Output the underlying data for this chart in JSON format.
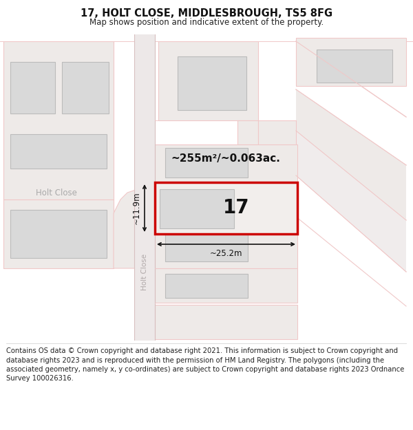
{
  "title": "17, HOLT CLOSE, MIDDLESBROUGH, TS5 8FG",
  "subtitle": "Map shows position and indicative extent of the property.",
  "footer": "Contains OS data © Crown copyright and database right 2021. This information is subject to Crown copyright and database rights 2023 and is reproduced with the permission of HM Land Registry. The polygons (including the associated geometry, namely x, y co-ordinates) are subject to Crown copyright and database rights 2023 Ordnance Survey 100026316.",
  "area_label": "~255m²/~0.063ac.",
  "width_label": "~25.2m",
  "height_label": "~11.9m",
  "number_label": "17",
  "bg_color": "#ffffff",
  "map_bg": "#f7f4f4",
  "road_band_color": "#ede8e8",
  "plot_outline_color": "#cc0000",
  "building_face": "#d9d9d9",
  "building_edge": "#bbbbbb",
  "parcel_face": "#eeeae8",
  "parcel_edge": "#e8b8b8",
  "street_line": "#f0c8c8",
  "dim_color": "#111111",
  "label_color": "#888888",
  "title_fontsize": 10.5,
  "subtitle_fontsize": 8.5,
  "footer_fontsize": 7.2,
  "area_fontsize": 11,
  "dim_fontsize": 8.5,
  "num_fontsize": 20
}
